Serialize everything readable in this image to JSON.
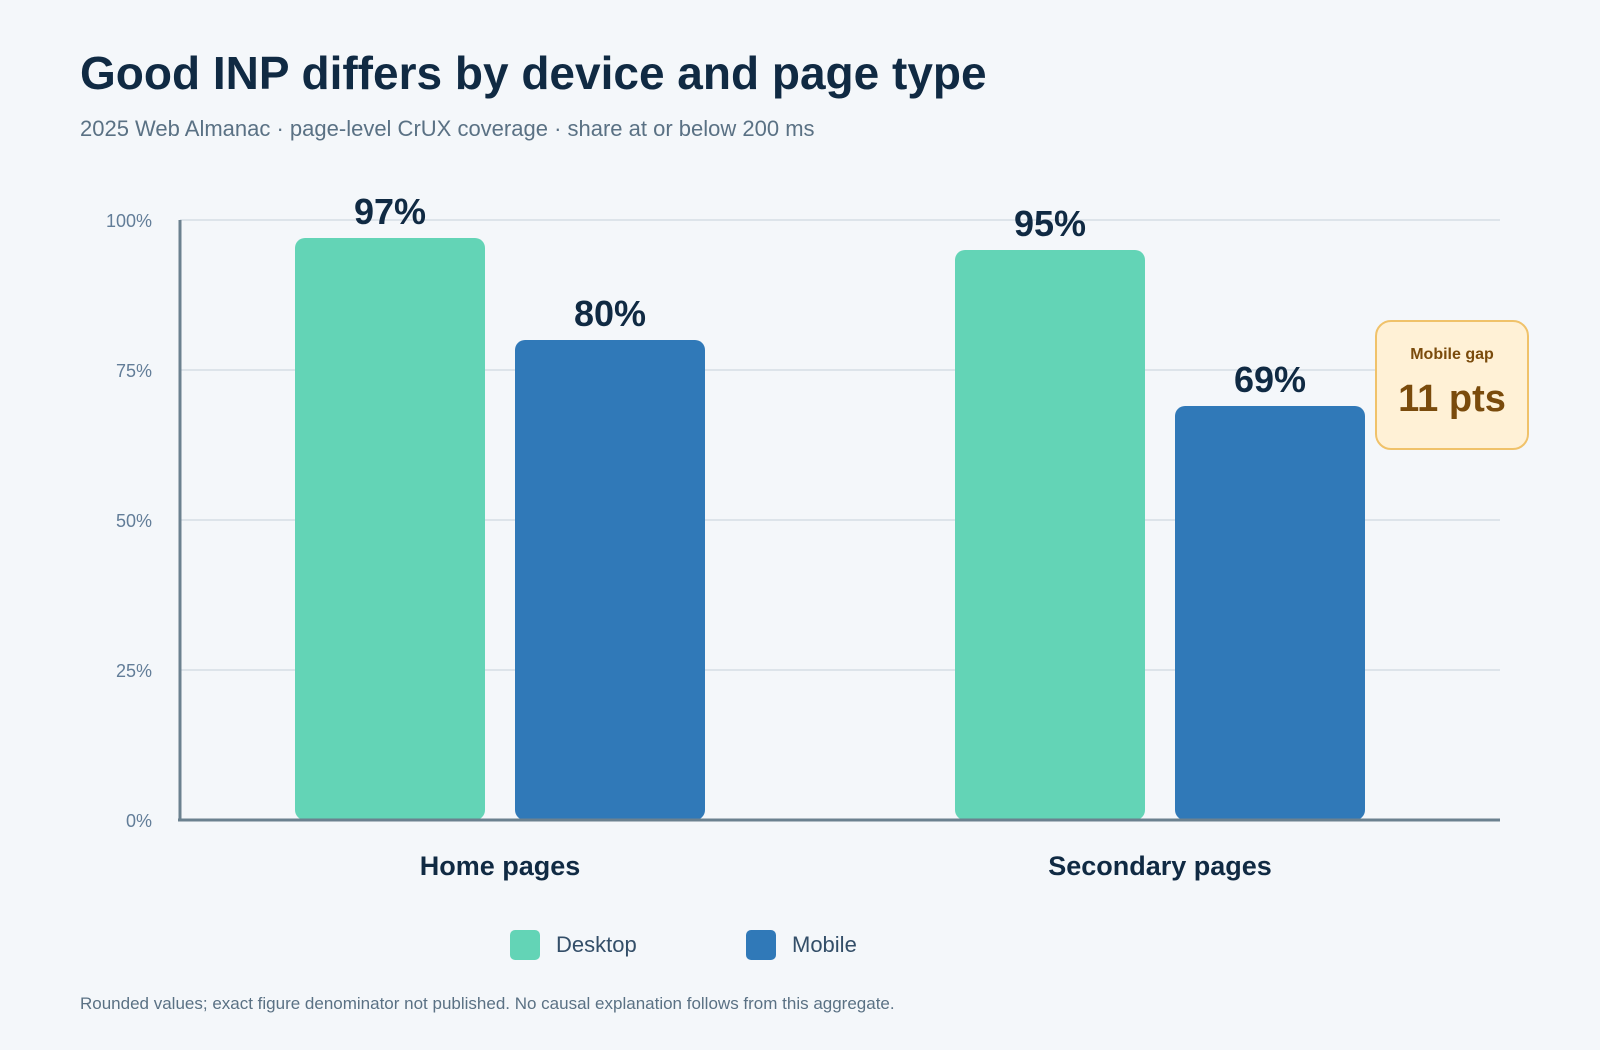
{
  "header": {
    "title": "Good INP differs by device and page type",
    "subtitle": "2025 Web Almanac · page-level CrUX coverage · share at or below 200 ms"
  },
  "chart_data": {
    "type": "bar",
    "title": "Good INP differs by device and page type",
    "subtitle": "2025 Web Almanac · page-level CrUX coverage · share at or below 200 ms",
    "categories": [
      "Home pages",
      "Secondary pages"
    ],
    "series": [
      {
        "name": "Desktop",
        "values": [
          97,
          95
        ],
        "labels": [
          "97%",
          "95%"
        ],
        "color": "#63d4b6"
      },
      {
        "name": "Mobile",
        "values": [
          80,
          69
        ],
        "labels": [
          "80%",
          "69%"
        ],
        "color": "#3079b8"
      }
    ],
    "ylim": [
      0,
      100
    ],
    "y_ticks": [
      {
        "value": 0,
        "label": "0%"
      },
      {
        "value": 25,
        "label": "25%"
      },
      {
        "value": 50,
        "label": "50%"
      },
      {
        "value": 75,
        "label": "75%"
      },
      {
        "value": 100,
        "label": "100%"
      }
    ],
    "xlabel": "",
    "ylabel": "",
    "grid": true,
    "legend_position": "bottom-center"
  },
  "legend": {
    "items": [
      {
        "label": "Desktop",
        "color": "#63d4b6"
      },
      {
        "label": "Mobile",
        "color": "#3079b8"
      }
    ]
  },
  "callout": {
    "label": "Mobile gap",
    "value": "11 pts"
  },
  "footnote": "Rounded values; exact figure denominator not published. No causal explanation follows from this aggregate.",
  "colors": {
    "background": "#f4f7fa",
    "title": "#102a43",
    "axis": "#6b818f",
    "grid": "#d5dde5",
    "callout_bg": "#fff1d6",
    "callout_border": "#f0c26a",
    "callout_text": "#7a4b0c"
  }
}
